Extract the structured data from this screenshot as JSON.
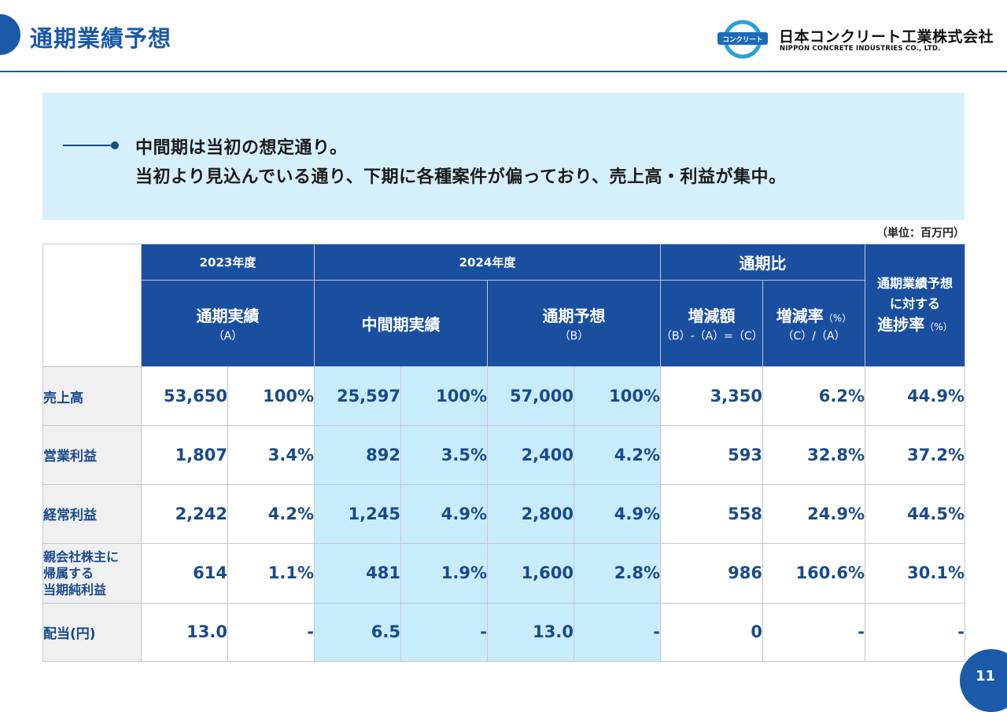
{
  "header": {
    "title": "通期業績予想",
    "logo": {
      "mark_text": "コンクリート",
      "company_jp": "日本コンクリート工業株式会社",
      "company_en": "NIPPON CONCRETE INDUSTRIES CO., LTD."
    }
  },
  "summary": {
    "lines": [
      "中間期は当初の想定通り。",
      "当初より見込んでいる通り、下期に各種案件が偏っており、売上高・利益が集中。"
    ]
  },
  "unit_note": "（単位：百万円）",
  "table": {
    "groups": {
      "fy2023": "2023年度",
      "fy2024": "2024年度",
      "comparison": "通期比",
      "progress_line1": "通期業績予想",
      "progress_line2": "に対する",
      "progress_line3": "進捗率",
      "progress_pct": "（%）"
    },
    "columns": {
      "actual_label": "通期実績",
      "actual_sub": "（A）",
      "interim_label": "中間期実績",
      "forecast_label": "通期予想",
      "forecast_sub": "（B）",
      "diff_label": "増減額",
      "diff_sub": "（B）-（A）=（C）",
      "rate_label": "増減率",
      "rate_pct": "（%）",
      "rate_sub": "（C）/（A）"
    },
    "rows": [
      {
        "label": "売上高",
        "values": [
          "53,650",
          "100%",
          "25,597",
          "100%",
          "57,000",
          "100%",
          "3,350",
          "6.2%",
          "44.9%"
        ]
      },
      {
        "label": "営業利益",
        "values": [
          "1,807",
          "3.4%",
          "892",
          "3.5%",
          "2,400",
          "4.2%",
          "593",
          "32.8%",
          "37.2%"
        ]
      },
      {
        "label": "経常利益",
        "values": [
          "2,242",
          "4.2%",
          "1,245",
          "4.9%",
          "2,800",
          "4.9%",
          "558",
          "24.9%",
          "44.5%"
        ]
      },
      {
        "label_lines": [
          "親会社株主に",
          "帰属する",
          "当期純利益"
        ],
        "values": [
          "614",
          "1.1%",
          "481",
          "1.9%",
          "1,600",
          "2.8%",
          "986",
          "160.6%",
          "30.1%"
        ]
      },
      {
        "label": "配当(円)",
        "values": [
          "13.0",
          "-",
          "6.5",
          "-",
          "13.0",
          "-",
          "0",
          "-",
          "-"
        ]
      }
    ]
  },
  "page_number": "11",
  "colors": {
    "brand_blue": "#1a5aa8",
    "header_cell": "#1a4fa0",
    "highlight_cell": "#c9ecfb",
    "summary_bg": "#d6f0fb"
  }
}
